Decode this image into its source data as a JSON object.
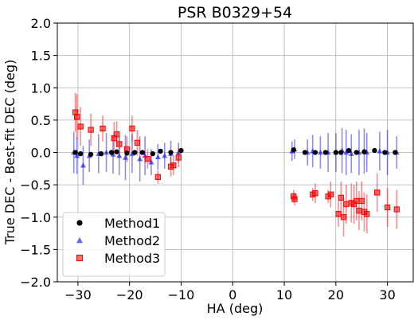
{
  "chart_data": {
    "type": "scatter",
    "title": "PSR B0329+54",
    "xlabel": "HA (deg)",
    "ylabel": "True DEC - Best-fit DEC (deg)",
    "xlim": [
      -34,
      35
    ],
    "ylim": [
      -2.0,
      2.0
    ],
    "xticks": [
      -30,
      -20,
      -10,
      0,
      10,
      20,
      30
    ],
    "xtick_labels": [
      "−30",
      "−20",
      "−10",
      "0",
      "10",
      "20",
      "30"
    ],
    "yticks": [
      -2.0,
      -1.5,
      -1.0,
      -0.5,
      0.0,
      0.5,
      1.0,
      1.5,
      2.0
    ],
    "ytick_labels": [
      "−2.0",
      "−1.5",
      "−1.0",
      "−0.5",
      "0.0",
      "0.5",
      "1.0",
      "1.5",
      "2.0"
    ],
    "grid": true,
    "legend_position": "lower-left",
    "series": [
      {
        "name": "Method1",
        "marker": "circle",
        "color": "#000000",
        "points": [
          {
            "x": -30.5,
            "y": 0.0,
            "err": 0.03
          },
          {
            "x": -29.5,
            "y": -0.02,
            "err": 0.03
          },
          {
            "x": -27.5,
            "y": -0.03,
            "err": 0.03
          },
          {
            "x": -25.5,
            "y": -0.02,
            "err": 0.03
          },
          {
            "x": -23.5,
            "y": 0.0,
            "err": 0.03
          },
          {
            "x": -22.5,
            "y": 0.01,
            "err": 0.03
          },
          {
            "x": -20.5,
            "y": -0.01,
            "err": 0.03
          },
          {
            "x": -19.0,
            "y": 0.0,
            "err": 0.03
          },
          {
            "x": -17.5,
            "y": 0.0,
            "err": 0.03
          },
          {
            "x": -15.5,
            "y": -0.02,
            "err": 0.03
          },
          {
            "x": -14.0,
            "y": 0.02,
            "err": 0.03
          },
          {
            "x": -12.0,
            "y": 0.0,
            "err": 0.03
          },
          {
            "x": -10.0,
            "y": 0.03,
            "err": 0.03
          },
          {
            "x": 11.8,
            "y": 0.04,
            "err": 0.03
          },
          {
            "x": 14.0,
            "y": 0.0,
            "err": 0.03
          },
          {
            "x": 16.0,
            "y": 0.0,
            "err": 0.03
          },
          {
            "x": 18.0,
            "y": 0.0,
            "err": 0.03
          },
          {
            "x": 20.0,
            "y": 0.0,
            "err": 0.03
          },
          {
            "x": 21.0,
            "y": 0.0,
            "err": 0.03
          },
          {
            "x": 22.5,
            "y": 0.03,
            "err": 0.03
          },
          {
            "x": 24.0,
            "y": 0.0,
            "err": 0.03
          },
          {
            "x": 25.5,
            "y": 0.01,
            "err": 0.03
          },
          {
            "x": 27.5,
            "y": 0.03,
            "err": 0.03
          },
          {
            "x": 29.5,
            "y": 0.0,
            "err": 0.03
          },
          {
            "x": 31.5,
            "y": 0.0,
            "err": 0.03
          }
        ]
      },
      {
        "name": "Method2",
        "marker": "triangle",
        "color": "#0000ee",
        "points": [
          {
            "x": -30.8,
            "y": 0.0,
            "err": 0.32
          },
          {
            "x": -30.2,
            "y": -0.05,
            "err": 0.28
          },
          {
            "x": -29.0,
            "y": -0.2,
            "err": 0.3
          },
          {
            "x": -27.8,
            "y": -0.05,
            "err": 0.25
          },
          {
            "x": -26.0,
            "y": -0.02,
            "err": 0.3
          },
          {
            "x": -24.5,
            "y": 0.0,
            "err": 0.3
          },
          {
            "x": -23.2,
            "y": -0.03,
            "err": 0.3
          },
          {
            "x": -22.0,
            "y": -0.05,
            "err": 0.3
          },
          {
            "x": -20.8,
            "y": -0.08,
            "err": 0.35
          },
          {
            "x": -19.5,
            "y": -0.02,
            "err": 0.3
          },
          {
            "x": -18.0,
            "y": -0.1,
            "err": 0.35
          },
          {
            "x": -17.0,
            "y": -0.05,
            "err": 0.3
          },
          {
            "x": -15.8,
            "y": -0.15,
            "err": 0.2
          },
          {
            "x": -14.5,
            "y": -0.07,
            "err": 0.2
          },
          {
            "x": -13.2,
            "y": -0.05,
            "err": 0.2
          },
          {
            "x": -12.0,
            "y": -0.02,
            "err": 0.2
          },
          {
            "x": -10.5,
            "y": 0.0,
            "err": 0.15
          },
          {
            "x": 11.5,
            "y": 0.02,
            "err": 0.15
          },
          {
            "x": 12.0,
            "y": 0.05,
            "err": 0.15
          },
          {
            "x": 14.5,
            "y": 0.0,
            "err": 0.2
          },
          {
            "x": 15.5,
            "y": 0.02,
            "err": 0.25
          },
          {
            "x": 17.0,
            "y": 0.0,
            "err": 0.25
          },
          {
            "x": 18.5,
            "y": 0.0,
            "err": 0.3
          },
          {
            "x": 20.0,
            "y": 0.0,
            "err": 0.3
          },
          {
            "x": 21.2,
            "y": 0.03,
            "err": 0.35
          },
          {
            "x": 22.0,
            "y": 0.0,
            "err": 0.35
          },
          {
            "x": 23.0,
            "y": -0.02,
            "err": 0.3
          },
          {
            "x": 24.5,
            "y": 0.0,
            "err": 0.35
          },
          {
            "x": 25.5,
            "y": 0.02,
            "err": 0.35
          },
          {
            "x": 26.0,
            "y": 0.0,
            "err": 0.3
          },
          {
            "x": 28.5,
            "y": 0.02,
            "err": 0.3
          },
          {
            "x": 30.0,
            "y": 0.0,
            "err": 0.35
          },
          {
            "x": 31.8,
            "y": 0.0,
            "err": 0.25
          }
        ]
      },
      {
        "name": "Method3",
        "marker": "square",
        "color": "#ff0000",
        "points": [
          {
            "x": -30.5,
            "y": 0.62,
            "err": 0.3
          },
          {
            "x": -30.2,
            "y": 0.55,
            "err": 0.35
          },
          {
            "x": -29.5,
            "y": 0.4,
            "err": 0.3
          },
          {
            "x": -27.5,
            "y": 0.35,
            "err": 0.25
          },
          {
            "x": -25.2,
            "y": 0.37,
            "err": 0.2
          },
          {
            "x": -23.0,
            "y": 0.22,
            "err": 0.25
          },
          {
            "x": -22.5,
            "y": 0.28,
            "err": 0.2
          },
          {
            "x": -22.0,
            "y": 0.13,
            "err": 0.2
          },
          {
            "x": -20.5,
            "y": 0.05,
            "err": 0.2
          },
          {
            "x": -19.5,
            "y": 0.37,
            "err": 0.2
          },
          {
            "x": -18.5,
            "y": 0.15,
            "err": 0.2
          },
          {
            "x": -16.5,
            "y": -0.1,
            "err": 0.15
          },
          {
            "x": -14.5,
            "y": -0.38,
            "err": 0.1
          },
          {
            "x": -12.0,
            "y": -0.22,
            "err": 0.15
          },
          {
            "x": -11.5,
            "y": -0.2,
            "err": 0.15
          },
          {
            "x": -10.5,
            "y": -0.08,
            "err": 0.15
          },
          {
            "x": 11.8,
            "y": -0.68,
            "err": 0.1
          },
          {
            "x": 12.0,
            "y": -0.72,
            "err": 0.1
          },
          {
            "x": 15.5,
            "y": -0.65,
            "err": 0.1
          },
          {
            "x": 16.0,
            "y": -0.63,
            "err": 0.15
          },
          {
            "x": 18.5,
            "y": -0.68,
            "err": 0.1
          },
          {
            "x": 19.0,
            "y": -0.65,
            "err": 0.2
          },
          {
            "x": 20.5,
            "y": -0.95,
            "err": 0.2
          },
          {
            "x": 21.0,
            "y": -0.7,
            "err": 0.25
          },
          {
            "x": 21.5,
            "y": -1.0,
            "err": 0.3
          },
          {
            "x": 22.0,
            "y": -0.8,
            "err": 0.3
          },
          {
            "x": 23.0,
            "y": -0.78,
            "err": 0.3
          },
          {
            "x": 23.5,
            "y": -0.8,
            "err": 0.3
          },
          {
            "x": 24.0,
            "y": -0.75,
            "err": 0.3
          },
          {
            "x": 24.5,
            "y": -0.9,
            "err": 0.3
          },
          {
            "x": 25.0,
            "y": -0.75,
            "err": 0.3
          },
          {
            "x": 25.5,
            "y": -0.92,
            "err": 0.3
          },
          {
            "x": 26.0,
            "y": -0.95,
            "err": 0.3
          },
          {
            "x": 28.0,
            "y": -0.62,
            "err": 0.3
          },
          {
            "x": 30.0,
            "y": -0.85,
            "err": 0.3
          },
          {
            "x": 31.8,
            "y": -0.88,
            "err": 0.3
          }
        ]
      }
    ]
  }
}
